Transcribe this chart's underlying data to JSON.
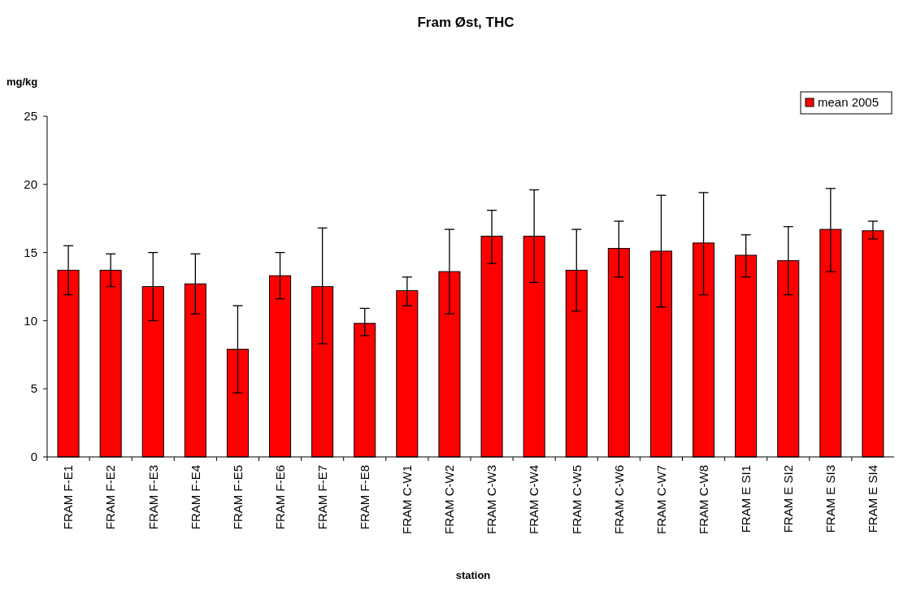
{
  "chart_data": {
    "type": "bar",
    "title": "Fram Øst, THC",
    "xlabel": "station",
    "ylabel": "mg/kg",
    "categories": [
      "FRAM F-E1",
      "FRAM F-E2",
      "FRAM F-E3",
      "FRAM F-E4",
      "FRAM F-E5",
      "FRAM F-E6",
      "FRAM F-E7",
      "FRAM F-E8",
      "FRAM C-W1",
      "FRAM C-W2",
      "FRAM C-W3",
      "FRAM C-W4",
      "FRAM C-W5",
      "FRAM C-W6",
      "FRAM C-W7",
      "FRAM C-W8",
      "FRAM E SI1",
      "FRAM E SI2",
      "FRAM E SI3",
      "FRAM E SI4"
    ],
    "series": [
      {
        "name": "mean 2005",
        "color": "#ff0000",
        "values": [
          13.7,
          13.7,
          12.5,
          12.7,
          7.9,
          13.3,
          12.5,
          9.8,
          12.2,
          13.6,
          16.2,
          16.2,
          13.7,
          15.3,
          15.1,
          15.7,
          14.8,
          14.4,
          16.7,
          16.6
        ],
        "errors": [
          [
            11.9,
            15.5
          ],
          [
            12.5,
            14.9
          ],
          [
            10.0,
            15.0
          ],
          [
            10.5,
            14.9
          ],
          [
            4.7,
            11.1
          ],
          [
            11.6,
            15.0
          ],
          [
            8.3,
            16.8
          ],
          [
            8.9,
            10.9
          ],
          [
            11.1,
            13.2
          ],
          [
            10.5,
            16.7
          ],
          [
            14.2,
            18.1
          ],
          [
            12.8,
            19.6
          ],
          [
            10.7,
            16.7
          ],
          [
            13.2,
            17.3
          ],
          [
            11.0,
            19.2
          ],
          [
            11.9,
            19.4
          ],
          [
            13.2,
            16.3
          ],
          [
            11.9,
            16.9
          ],
          [
            13.6,
            19.7
          ],
          [
            16.0,
            17.3
          ]
        ]
      }
    ],
    "ylim": [
      0,
      25
    ],
    "yticks": [
      0,
      5,
      10,
      15,
      20,
      25
    ],
    "grid": false,
    "legend": "top right"
  }
}
